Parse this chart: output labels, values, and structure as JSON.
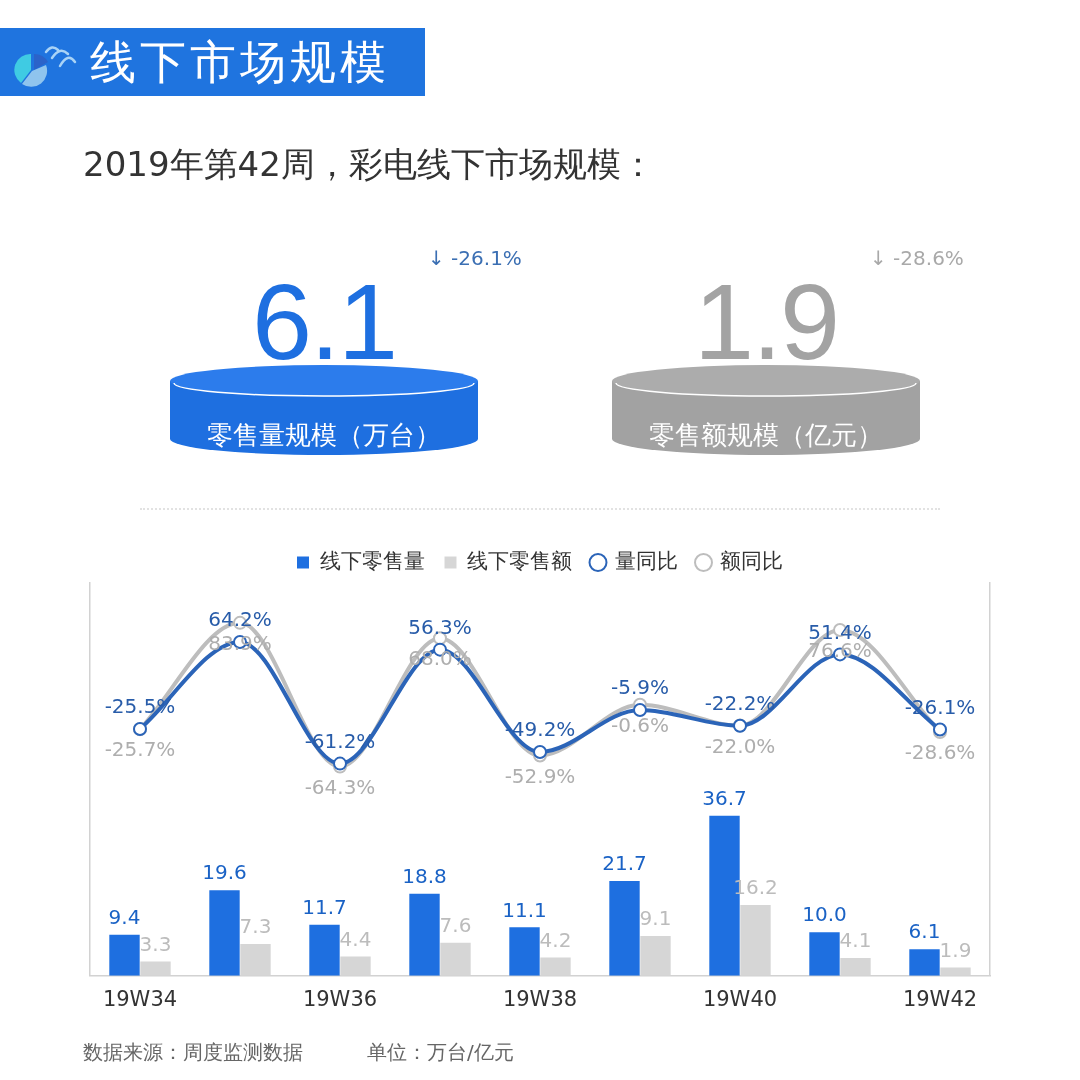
{
  "chart_data": [
    {
      "type": "other",
      "title": "线下市场规模",
      "subtitle": "2019年第42周，彩电线下市场规模：",
      "annotations": [
        "6.1",
        "↓ -26.1%",
        "零售量规模（万台）",
        "1.9",
        "↓ -28.6%",
        "零售额规模（亿元）"
      ]
    },
    {
      "type": "bar",
      "categories": [
        "19W34",
        null,
        "19W36",
        null,
        "19W38",
        null,
        "19W40",
        null,
        "19W42"
      ],
      "series": [
        {
          "name": "线下零售量",
          "type": "bar",
          "color": "#1e6fe0",
          "values": [
            9.4,
            19.6,
            11.7,
            18.8,
            11.1,
            21.7,
            36.7,
            10.0,
            6.1
          ],
          "value_labels": [
            "9.4",
            "19.6",
            "11.7",
            "18.8",
            "11.1",
            "21.7",
            "36.7",
            "10.0",
            "6.1"
          ]
        },
        {
          "name": "线下零售额",
          "type": "bar",
          "color": "#d6d6d6",
          "values": [
            3.3,
            7.3,
            4.4,
            7.6,
            4.2,
            9.1,
            16.2,
            4.1,
            1.9
          ],
          "value_labels": [
            "3.3",
            "7.3",
            "4.4",
            "7.6",
            "4.2",
            "9.1",
            "16.2",
            "4.1",
            "1.9"
          ]
        },
        {
          "name": "量同比",
          "type": "line",
          "axis": "y2",
          "color": "#2b64b8",
          "values": [
            -25.5,
            64.2,
            -61.2,
            56.3,
            -49.2,
            -5.9,
            -22.2,
            51.4,
            -26.1
          ],
          "value_labels": [
            "-25.5%",
            "64.2%",
            "-61.2%",
            "56.3%",
            "-49.2%",
            "-5.9%",
            "-22.2%",
            "51.4%",
            "-26.1%"
          ]
        },
        {
          "name": "额同比",
          "type": "line",
          "axis": "y2",
          "color": "#bdbdbd",
          "values": [
            -25.7,
            83.9,
            -64.3,
            68.0,
            -52.9,
            -0.6,
            -22.0,
            76.6,
            -28.6
          ],
          "value_labels": [
            "-25.7%",
            "83.9%",
            "-64.3%",
            "68.0%",
            "-52.9%",
            "-0.6%",
            "-22.0%",
            "76.6%",
            "-28.6%"
          ]
        }
      ],
      "ylim": [
        0,
        90
      ],
      "y2lim": [
        -280,
        125
      ],
      "tick_labels": "x",
      "legend": "top",
      "marker": "circle",
      "line_style": "solid",
      "annotations": [
        "数据来源：周度监测数据",
        "单位：万台/亿元"
      ]
    }
  ]
}
